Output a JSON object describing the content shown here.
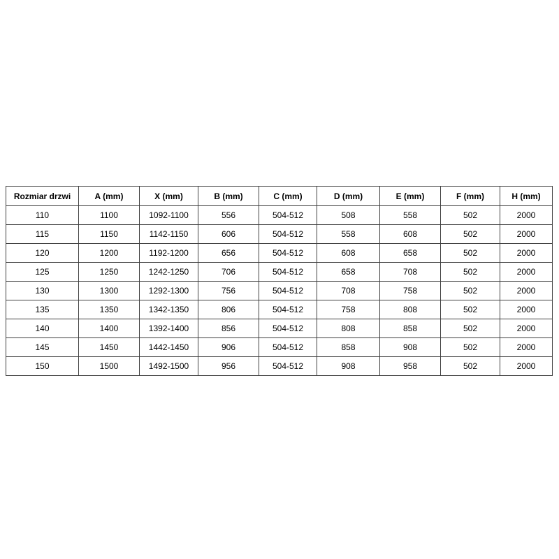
{
  "page": {
    "background": "#ffffff",
    "text_color": "#000000",
    "border_color": "#404040"
  },
  "table": {
    "columns": [
      "Rozmiar drzwi",
      "A (mm)",
      "X (mm)",
      "B (mm)",
      "C (mm)",
      "D (mm)",
      "E (mm)",
      "F (mm)",
      "H (mm)"
    ],
    "rows": [
      [
        "110",
        "1100",
        "1092-1100",
        "556",
        "504-512",
        "508",
        "558",
        "502",
        "2000"
      ],
      [
        "115",
        "1150",
        "1142-1150",
        "606",
        "504-512",
        "558",
        "608",
        "502",
        "2000"
      ],
      [
        "120",
        "1200",
        "1192-1200",
        "656",
        "504-512",
        "608",
        "658",
        "502",
        "2000"
      ],
      [
        "125",
        "1250",
        "1242-1250",
        "706",
        "504-512",
        "658",
        "708",
        "502",
        "2000"
      ],
      [
        "130",
        "1300",
        "1292-1300",
        "756",
        "504-512",
        "708",
        "758",
        "502",
        "2000"
      ],
      [
        "135",
        "1350",
        "1342-1350",
        "806",
        "504-512",
        "758",
        "808",
        "502",
        "2000"
      ],
      [
        "140",
        "1400",
        "1392-1400",
        "856",
        "504-512",
        "808",
        "858",
        "502",
        "2000"
      ],
      [
        "145",
        "1450",
        "1442-1450",
        "906",
        "504-512",
        "858",
        "908",
        "502",
        "2000"
      ],
      [
        "150",
        "1500",
        "1492-1500",
        "956",
        "504-512",
        "908",
        "958",
        "502",
        "2000"
      ]
    ]
  }
}
